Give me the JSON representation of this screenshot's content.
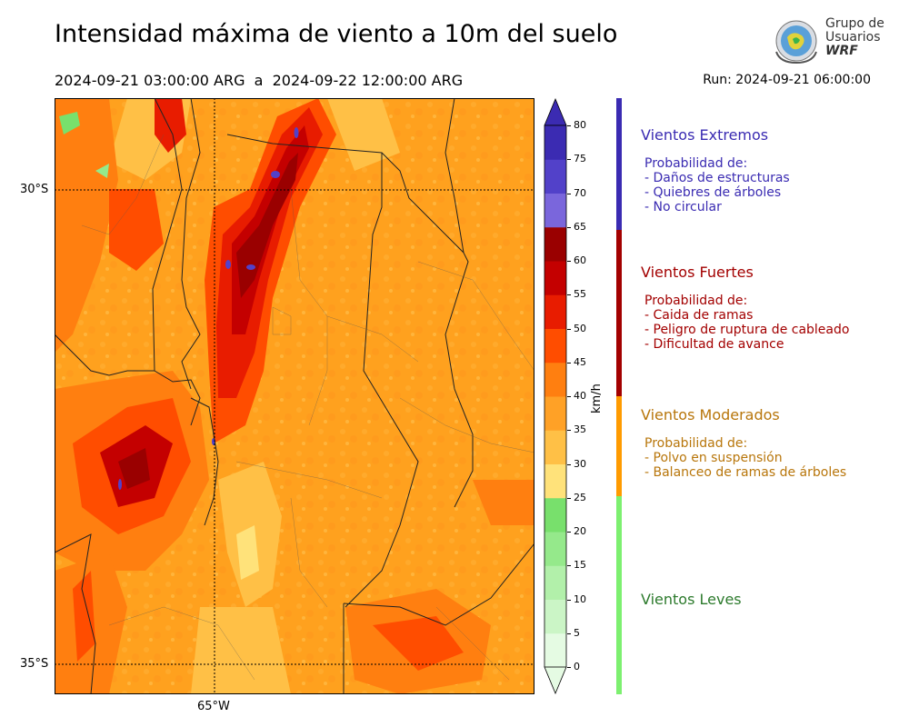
{
  "title": "Intensidad máxima de viento a 10m del suelo",
  "period": "2024-09-21 03:00:00 ARG  a  2024-09-22 12:00:00 ARG",
  "run": "Run: 2024-09-21 06:00:00",
  "logo": {
    "line1": "Grupo de",
    "line2": "Usuarios",
    "line3": "WRF"
  },
  "map": {
    "lat_labels": [
      "30°S",
      "35°S"
    ],
    "lon_labels": [
      "65°W"
    ]
  },
  "colorbar": {
    "unit": "km/h",
    "ticks": [
      "0",
      "5",
      "10",
      "15",
      "20",
      "25",
      "30",
      "35",
      "40",
      "45",
      "50",
      "55",
      "60",
      "65",
      "70",
      "75",
      "80"
    ],
    "colors": [
      "#e5fbe3",
      "#cbf5c6",
      "#b2f0aa",
      "#95e98b",
      "#78e06c",
      "#ffe27a",
      "#ffc046",
      "#ffa126",
      "#ff7f10",
      "#ff4d00",
      "#e81c00",
      "#c40000",
      "#9a0000",
      "#7a66dc",
      "#5241c9",
      "#3b2bb2"
    ]
  },
  "categories": [
    {
      "title": "Vientos Extremos",
      "color": "#3a2bb2",
      "lines": [
        "Probabilidad de:",
        "- Daños de estructuras",
        "- Quiebres de árboles",
        "- No circular"
      ]
    },
    {
      "title": "Vientos Fuertes",
      "color": "#a30000",
      "lines": [
        "Probabilidad de:",
        "- Caida de ramas",
        "- Peligro de ruptura de cableado",
        "- Dificultad de avance"
      ]
    },
    {
      "title": "Vientos Moderados",
      "color": "#b8760b",
      "lines": [
        "Probabilidad de:",
        "- Polvo en suspensión",
        "- Balanceo de ramas de árboles"
      ]
    },
    {
      "title": "Vientos Leves",
      "color": "#2c7a2c",
      "lines": []
    }
  ]
}
